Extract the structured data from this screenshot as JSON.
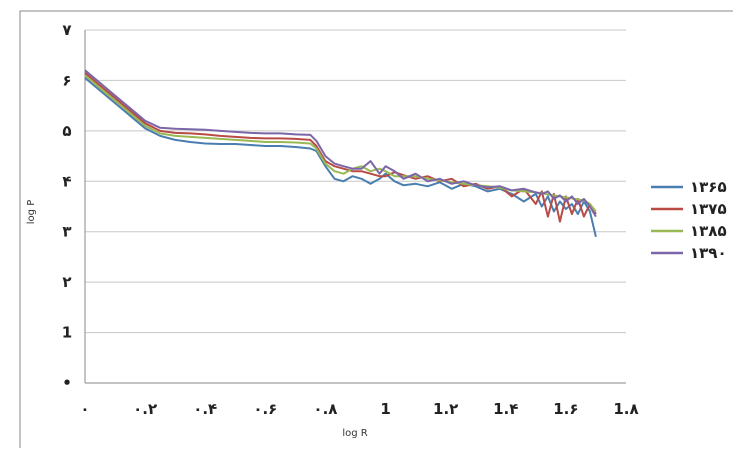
{
  "chart_data": {
    "type": "line",
    "xlabel": "log R",
    "ylabel": "log P",
    "xlim": [
      0,
      1.8
    ],
    "ylim": [
      0,
      7
    ],
    "x_ticks": [
      {
        "value": 0,
        "label": "۰"
      },
      {
        "value": 0.2,
        "label": "۰.۲"
      },
      {
        "value": 0.4,
        "label": "۰.۴"
      },
      {
        "value": 0.6,
        "label": "۰.۶"
      },
      {
        "value": 0.8,
        "label": "۰.۸"
      },
      {
        "value": 1.0,
        "label": "1"
      },
      {
        "value": 1.2,
        "label": "1.۲"
      },
      {
        "value": 1.4,
        "label": "1.۴"
      },
      {
        "value": 1.6,
        "label": "1.۶"
      },
      {
        "value": 1.8,
        "label": "1.۸"
      }
    ],
    "y_ticks": [
      {
        "value": 0,
        "label": "•"
      },
      {
        "value": 1,
        "label": "1"
      },
      {
        "value": 2,
        "label": "۲"
      },
      {
        "value": 3,
        "label": "۳"
      },
      {
        "value": 4,
        "label": "۴"
      },
      {
        "value": 5,
        "label": "۵"
      },
      {
        "value": 6,
        "label": "۶"
      },
      {
        "value": 7,
        "label": "۷"
      }
    ],
    "grid": {
      "horizontal": true,
      "vertical": false
    },
    "legend_position": "right",
    "series": [
      {
        "name": "۱۳۶۵",
        "color": "#4a7eb0",
        "x": [
          0,
          0.05,
          0.1,
          0.15,
          0.2,
          0.25,
          0.3,
          0.35,
          0.4,
          0.45,
          0.5,
          0.55,
          0.6,
          0.65,
          0.7,
          0.75,
          0.77,
          0.8,
          0.83,
          0.86,
          0.89,
          0.92,
          0.95,
          0.98,
          1.0,
          1.03,
          1.06,
          1.1,
          1.14,
          1.18,
          1.22,
          1.26,
          1.3,
          1.34,
          1.38,
          1.42,
          1.46,
          1.5,
          1.52,
          1.54,
          1.56,
          1.58,
          1.6,
          1.62,
          1.64,
          1.66,
          1.68,
          1.7
        ],
        "y": [
          6.05,
          5.8,
          5.55,
          5.3,
          5.05,
          4.9,
          4.82,
          4.78,
          4.75,
          4.74,
          4.74,
          4.72,
          4.7,
          4.7,
          4.68,
          4.65,
          4.6,
          4.3,
          4.05,
          4.0,
          4.1,
          4.05,
          3.95,
          4.05,
          4.15,
          4.0,
          3.92,
          3.95,
          3.9,
          3.98,
          3.85,
          3.95,
          3.9,
          3.8,
          3.85,
          3.75,
          3.6,
          3.75,
          3.5,
          3.7,
          3.4,
          3.6,
          3.45,
          3.55,
          3.35,
          3.6,
          3.4,
          2.9
        ]
      },
      {
        "name": "۱۳۷۵",
        "color": "#b84b45",
        "x": [
          0,
          0.05,
          0.1,
          0.15,
          0.2,
          0.25,
          0.3,
          0.35,
          0.4,
          0.45,
          0.5,
          0.55,
          0.6,
          0.65,
          0.7,
          0.75,
          0.77,
          0.8,
          0.83,
          0.86,
          0.89,
          0.92,
          0.95,
          0.98,
          1.0,
          1.03,
          1.06,
          1.1,
          1.14,
          1.18,
          1.22,
          1.26,
          1.3,
          1.34,
          1.38,
          1.42,
          1.46,
          1.5,
          1.52,
          1.54,
          1.56,
          1.58,
          1.6,
          1.62,
          1.64,
          1.66,
          1.68,
          1.7
        ],
        "y": [
          6.15,
          5.9,
          5.65,
          5.4,
          5.15,
          5.0,
          4.96,
          4.95,
          4.93,
          4.9,
          4.88,
          4.86,
          4.85,
          4.85,
          4.84,
          4.82,
          4.7,
          4.4,
          4.3,
          4.25,
          4.2,
          4.2,
          4.15,
          4.1,
          4.1,
          4.18,
          4.12,
          4.05,
          4.1,
          4.0,
          4.05,
          3.9,
          3.95,
          3.85,
          3.9,
          3.7,
          3.85,
          3.55,
          3.8,
          3.3,
          3.75,
          3.2,
          3.7,
          3.35,
          3.65,
          3.3,
          3.55,
          3.35
        ]
      },
      {
        "name": "۱۳۸۵",
        "color": "#98b954",
        "x": [
          0,
          0.05,
          0.1,
          0.15,
          0.2,
          0.25,
          0.3,
          0.35,
          0.4,
          0.45,
          0.5,
          0.55,
          0.6,
          0.65,
          0.7,
          0.75,
          0.77,
          0.8,
          0.83,
          0.86,
          0.89,
          0.92,
          0.95,
          0.98,
          1.0,
          1.03,
          1.06,
          1.1,
          1.14,
          1.18,
          1.22,
          1.26,
          1.3,
          1.34,
          1.38,
          1.42,
          1.46,
          1.5,
          1.52,
          1.54,
          1.56,
          1.58,
          1.6,
          1.62,
          1.64,
          1.66,
          1.68,
          1.7
        ],
        "y": [
          6.1,
          5.85,
          5.6,
          5.35,
          5.1,
          4.95,
          4.9,
          4.88,
          4.86,
          4.84,
          4.82,
          4.8,
          4.78,
          4.78,
          4.77,
          4.75,
          4.65,
          4.35,
          4.2,
          4.15,
          4.25,
          4.3,
          4.2,
          4.25,
          4.2,
          4.1,
          4.1,
          4.1,
          4.05,
          4.02,
          3.98,
          3.95,
          3.92,
          3.9,
          3.87,
          3.82,
          3.8,
          3.78,
          3.76,
          3.74,
          3.72,
          3.7,
          3.68,
          3.66,
          3.64,
          3.62,
          3.55,
          3.4
        ]
      },
      {
        "name": "۱۳۹۰",
        "color": "#7b66a8",
        "x": [
          0,
          0.05,
          0.1,
          0.15,
          0.2,
          0.25,
          0.3,
          0.35,
          0.4,
          0.45,
          0.5,
          0.55,
          0.6,
          0.65,
          0.7,
          0.75,
          0.77,
          0.8,
          0.83,
          0.86,
          0.89,
          0.92,
          0.95,
          0.98,
          1.0,
          1.03,
          1.06,
          1.1,
          1.14,
          1.18,
          1.22,
          1.26,
          1.3,
          1.34,
          1.38,
          1.42,
          1.46,
          1.5,
          1.52,
          1.54,
          1.56,
          1.58,
          1.6,
          1.62,
          1.64,
          1.66,
          1.68,
          1.7
        ],
        "y": [
          6.2,
          5.95,
          5.7,
          5.45,
          5.2,
          5.06,
          5.04,
          5.03,
          5.02,
          5.0,
          4.98,
          4.96,
          4.95,
          4.95,
          4.93,
          4.92,
          4.8,
          4.5,
          4.35,
          4.3,
          4.25,
          4.25,
          4.4,
          4.15,
          4.3,
          4.2,
          4.05,
          4.15,
          4.0,
          4.05,
          3.95,
          4.0,
          3.92,
          3.88,
          3.9,
          3.82,
          3.85,
          3.78,
          3.75,
          3.8,
          3.65,
          3.72,
          3.6,
          3.7,
          3.55,
          3.65,
          3.5,
          3.3
        ]
      }
    ]
  }
}
